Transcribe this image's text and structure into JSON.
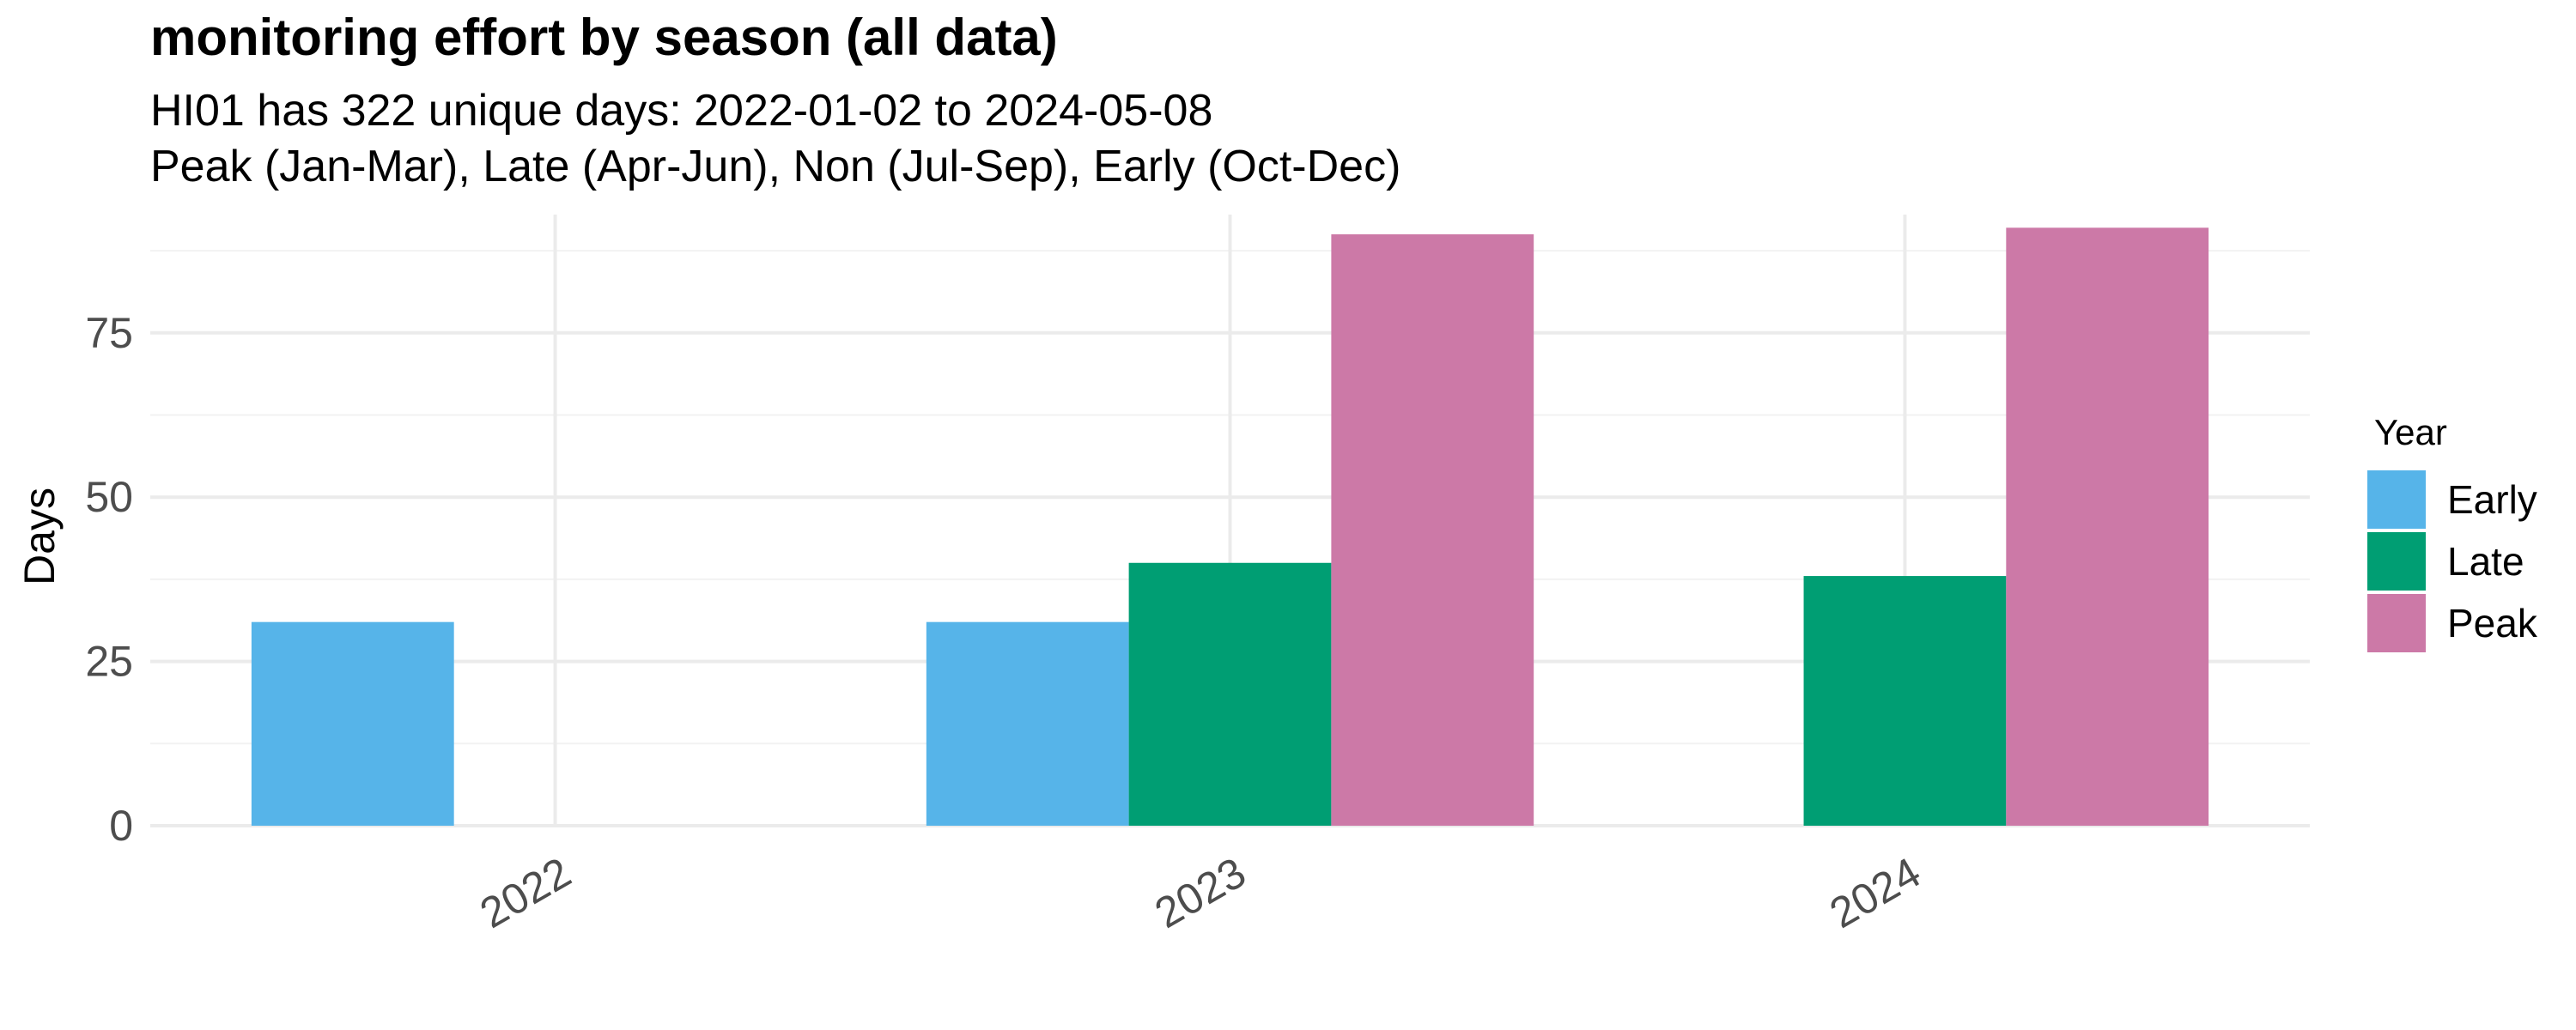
{
  "chart_data": {
    "type": "bar",
    "title": "monitoring effort by season (all data)",
    "subtitle_lines": [
      "HI01 has 322 unique days: 2022-01-02 to 2024-05-08",
      "Peak (Jan-Mar), Late (Apr-Jun), Non (Jul-Sep), Early (Oct-Dec)"
    ],
    "xlabel": "",
    "ylabel": "Days",
    "categories": [
      "2022",
      "2023",
      "2024"
    ],
    "ylim": [
      0,
      93
    ],
    "yticks": [
      0,
      25,
      50,
      75
    ],
    "grid": true,
    "legend_title": "Year",
    "legend_position": "right",
    "series": [
      {
        "name": "Early",
        "color": "#56B4E9",
        "values": [
          31,
          31,
          null
        ]
      },
      {
        "name": "Late",
        "color": "#009E73",
        "values": [
          null,
          40,
          38
        ]
      },
      {
        "name": "Peak",
        "color": "#CC79A7",
        "values": [
          null,
          90,
          91
        ]
      }
    ]
  }
}
